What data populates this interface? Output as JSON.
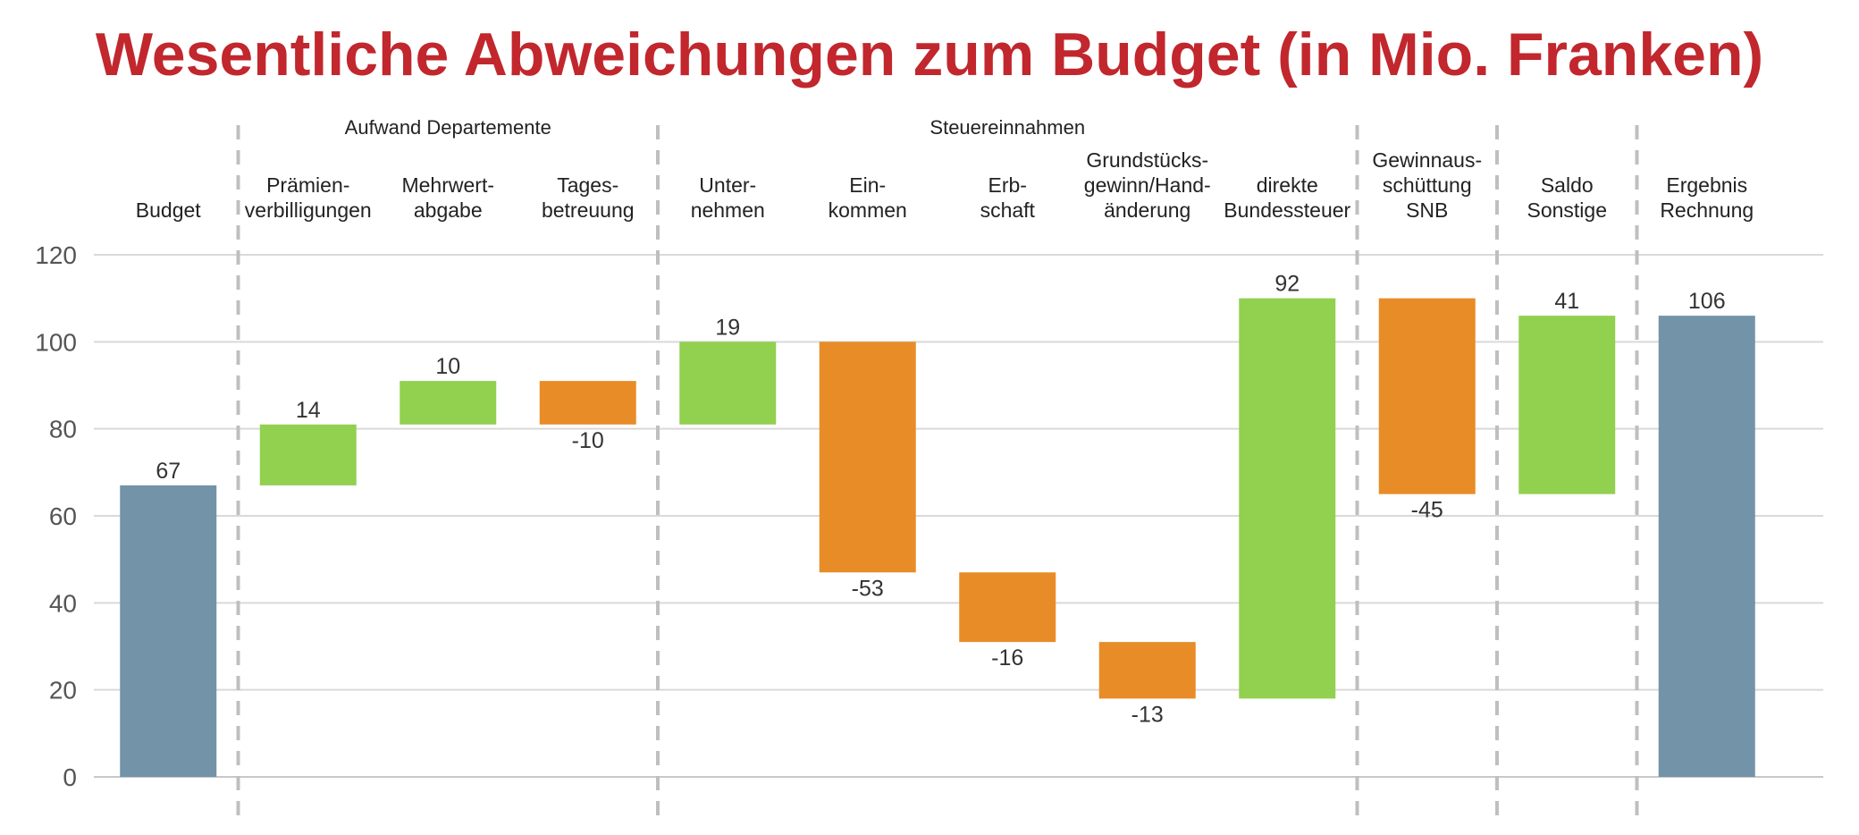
{
  "title": "Wesentliche Abweichungen zum Budget (in Mio. Franken)",
  "colors": {
    "total": "#7293a8",
    "increase": "#92d050",
    "decrease": "#e88c27",
    "title": "#c1272d",
    "grid": "#d9d9d9",
    "divider": "#bfbfbf"
  },
  "chart_data": {
    "type": "bar",
    "subtype": "waterfall",
    "title": "Wesentliche Abweichungen zum Budget (in Mio. Franken)",
    "ylim": [
      0,
      120
    ],
    "yticks": [
      0,
      20,
      40,
      60,
      80,
      100,
      120
    ],
    "grid": true,
    "groups": [
      {
        "label": "Aufwand Departemente",
        "from": 1,
        "to": 3
      },
      {
        "label": "Steuereinnahmen",
        "from": 4,
        "to": 8
      }
    ],
    "dividers_after": [
      0,
      3,
      8,
      9,
      10
    ],
    "categories": [
      {
        "lines": [
          "Budget"
        ],
        "kind": "total",
        "start": 0,
        "end": 67,
        "label": "67"
      },
      {
        "lines": [
          "Prämien-",
          "verbilligungen"
        ],
        "kind": "delta",
        "start": 67,
        "end": 81,
        "label": "14"
      },
      {
        "lines": [
          "Mehrwert-",
          "abgabe"
        ],
        "kind": "delta",
        "start": 81,
        "end": 91,
        "label": "10"
      },
      {
        "lines": [
          "Tages-",
          "betreuung"
        ],
        "kind": "delta",
        "start": 91,
        "end": 81,
        "label": "-10"
      },
      {
        "lines": [
          "Unter-",
          "nehmen"
        ],
        "kind": "delta",
        "start": 81,
        "end": 100,
        "label": "19"
      },
      {
        "lines": [
          "Ein-",
          "kommen"
        ],
        "kind": "delta",
        "start": 100,
        "end": 47,
        "label": "-53"
      },
      {
        "lines": [
          "Erb-",
          "schaft"
        ],
        "kind": "delta",
        "start": 47,
        "end": 31,
        "label": "-16"
      },
      {
        "lines": [
          "Grundstücks-",
          "gewinn/Hand-",
          "änderung"
        ],
        "kind": "delta",
        "start": 31,
        "end": 18,
        "label": "-13"
      },
      {
        "lines": [
          "direkte",
          "Bundessteuer"
        ],
        "kind": "delta",
        "start": 18,
        "end": 110,
        "label": "92"
      },
      {
        "lines": [
          "Gewinnaus-",
          "schüttung",
          "SNB"
        ],
        "kind": "delta",
        "start": 110,
        "end": 65,
        "label": "-45"
      },
      {
        "lines": [
          "Saldo",
          "Sonstige"
        ],
        "kind": "delta",
        "start": 65,
        "end": 106,
        "label": "41"
      },
      {
        "lines": [
          "Ergebnis",
          "Rechnung"
        ],
        "kind": "total",
        "start": 0,
        "end": 106,
        "label": "106"
      }
    ]
  }
}
